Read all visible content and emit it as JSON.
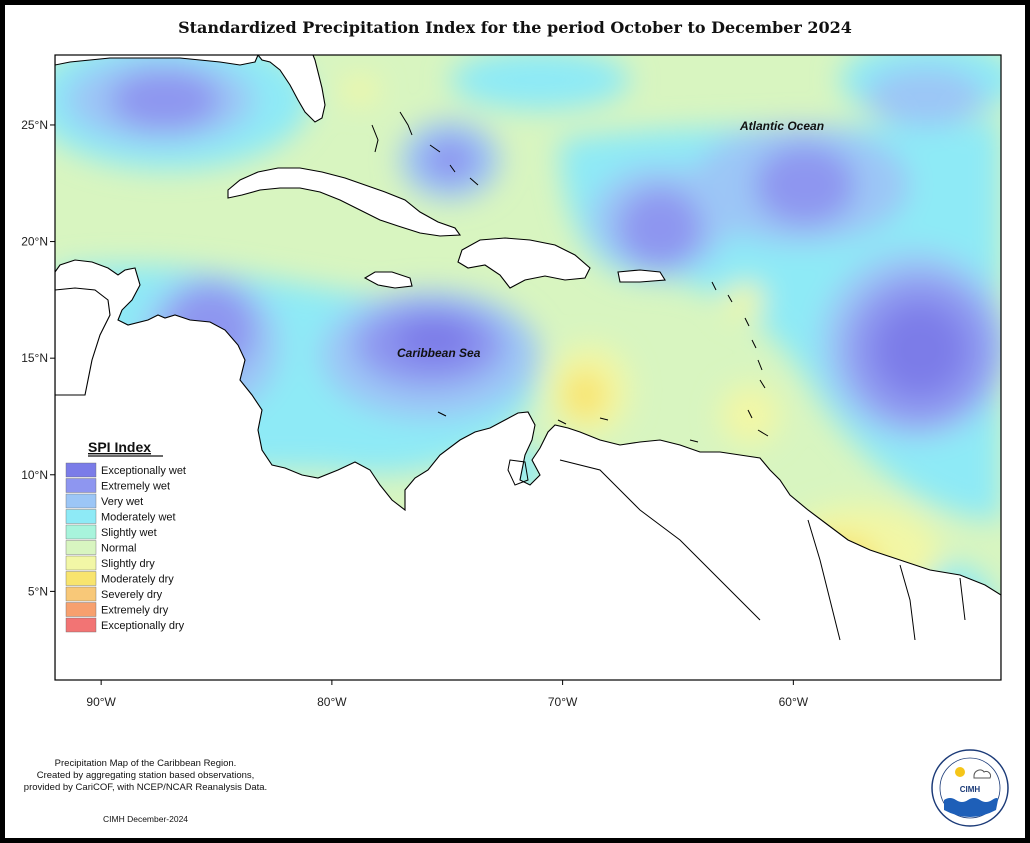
{
  "title": "Standardized Precipitation Index for the period October to December 2024",
  "map": {
    "lon_range": [
      -92,
      -51
    ],
    "lat_range": [
      1.2,
      28
    ],
    "x_ticks": [
      {
        "lon": -90,
        "label": "90°W"
      },
      {
        "lon": -80,
        "label": "80°W"
      },
      {
        "lon": -70,
        "label": "70°W"
      },
      {
        "lon": -60,
        "label": "60°W"
      }
    ],
    "y_ticks": [
      {
        "lat": 25,
        "label": "25°N"
      },
      {
        "lat": 20,
        "label": "20°N"
      },
      {
        "lat": 15,
        "label": "15°N"
      },
      {
        "lat": 10,
        "label": "10°N"
      },
      {
        "lat": 5,
        "label": "5°N"
      }
    ],
    "labels": {
      "atlantic": "Atlantic Ocean",
      "caribbean": "Caribbean Sea"
    },
    "background_color": "#d8f5c0"
  },
  "legend": {
    "title": "SPI Index",
    "items": [
      {
        "label": "Exceptionally wet",
        "color": "#7b7ce8"
      },
      {
        "label": "Extremely wet",
        "color": "#8e96f0"
      },
      {
        "label": "Very wet",
        "color": "#9cc6f6"
      },
      {
        "label": "Moderately wet",
        "color": "#8eeaf6"
      },
      {
        "label": "Slightly wet",
        "color": "#a8f4dc"
      },
      {
        "label": "Normal",
        "color": "#d8f5c0"
      },
      {
        "label": "Slightly dry",
        "color": "#f2f7a6"
      },
      {
        "label": "Moderately dry",
        "color": "#f8e46e"
      },
      {
        "label": "Severely dry",
        "color": "#f8c878"
      },
      {
        "label": "Extremely dry",
        "color": "#f7a06e"
      },
      {
        "label": "Exceptionally dry",
        "color": "#f27474"
      }
    ]
  },
  "credit": {
    "lines": [
      "Precipitation Map of the Caribbean Region.",
      "Created by aggregating station based observations,",
      "provided by CariCOF, with NCEP/NCAR Reanalysis Data."
    ],
    "footer": "CIMH December-2024"
  },
  "logo": {
    "name": "CIMH"
  }
}
